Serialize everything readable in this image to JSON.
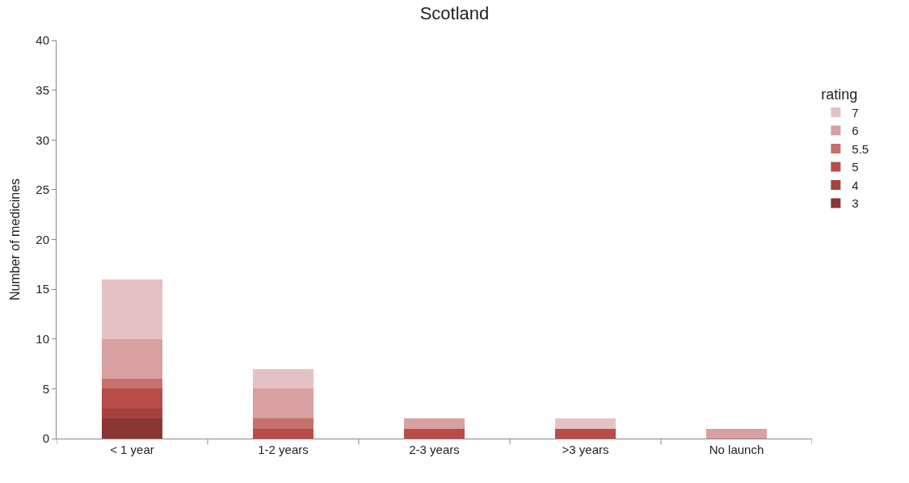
{
  "chart_data": {
    "type": "bar",
    "title": "Scotland",
    "ylabel": "Number of medicines",
    "legend_title": "rating",
    "categories": [
      "< 1 year",
      "1-2 years",
      "2-3 years",
      ">3 years",
      "No launch"
    ],
    "stacked": true,
    "ylim": [
      0,
      40
    ],
    "yticks": [
      0,
      5,
      10,
      15,
      20,
      25,
      30,
      35,
      40
    ],
    "grid": false,
    "legend": "right",
    "series": [
      {
        "name": "3",
        "color": "#8b3535",
        "values": [
          2,
          0,
          0,
          0,
          0
        ]
      },
      {
        "name": "4",
        "color": "#a64140",
        "values": [
          1,
          0,
          0,
          0,
          0
        ]
      },
      {
        "name": "5",
        "color": "#b84c48",
        "values": [
          2,
          1,
          1,
          1,
          0
        ]
      },
      {
        "name": "5.5",
        "color": "#c8706c",
        "values": [
          1,
          1,
          0,
          0,
          0
        ]
      },
      {
        "name": "6",
        "color": "#d8a0a0",
        "values": [
          4,
          3,
          1,
          0,
          1
        ]
      },
      {
        "name": "7",
        "color": "#e4c2c4",
        "values": [
          6,
          2,
          0,
          1,
          0
        ]
      }
    ]
  }
}
